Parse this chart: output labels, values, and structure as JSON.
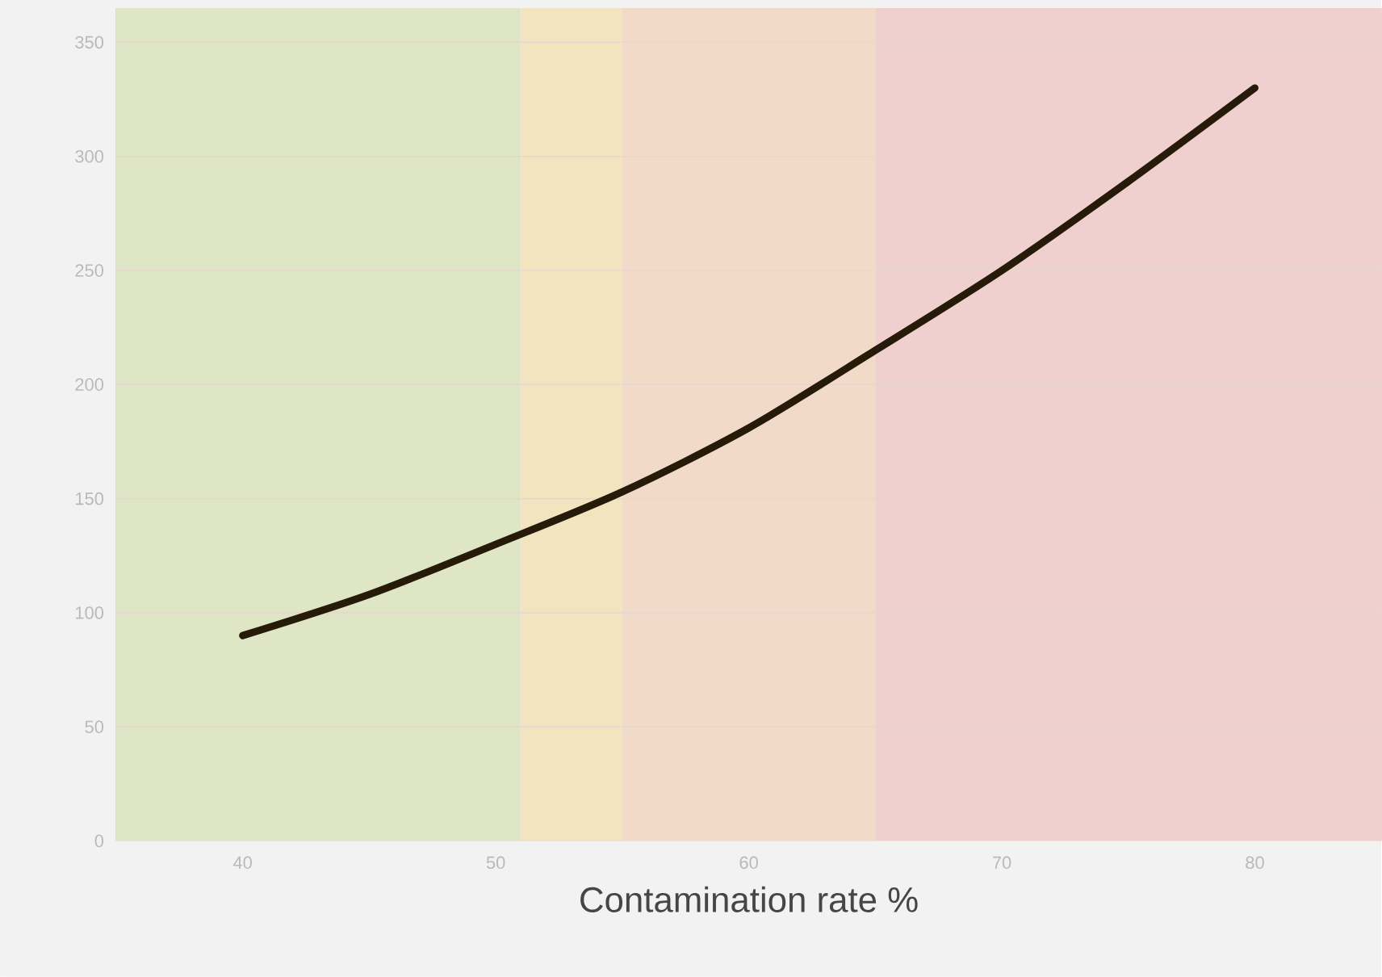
{
  "chart_data": {
    "type": "line",
    "xlabel": "Contamination rate  %",
    "x": [
      40,
      45,
      50,
      55,
      60,
      65,
      70,
      75,
      80
    ],
    "series": [
      {
        "color": "#261a08",
        "values": [
          90,
          108,
          130,
          153,
          181,
          215,
          250,
          289,
          330
        ]
      }
    ],
    "xlim": [
      35,
      85
    ],
    "ylim": [
      0,
      365
    ],
    "xticks": [
      40,
      50,
      60,
      70,
      80
    ],
    "yticks": [
      0,
      50,
      100,
      150,
      200,
      250,
      300,
      350
    ],
    "grid": "y",
    "marker": "none",
    "line_style": "solid",
    "bands": [
      {
        "axis": "x",
        "from": 35,
        "to": 51,
        "color": "#dfe6c5"
      },
      {
        "axis": "x",
        "from": 51,
        "to": 55,
        "color": "#f3e4c0"
      },
      {
        "axis": "x",
        "from": 55,
        "to": 65,
        "color": "#f2dac8"
      },
      {
        "axis": "x",
        "from": 65,
        "to": 85,
        "color": "#f0cfcf"
      }
    ]
  }
}
